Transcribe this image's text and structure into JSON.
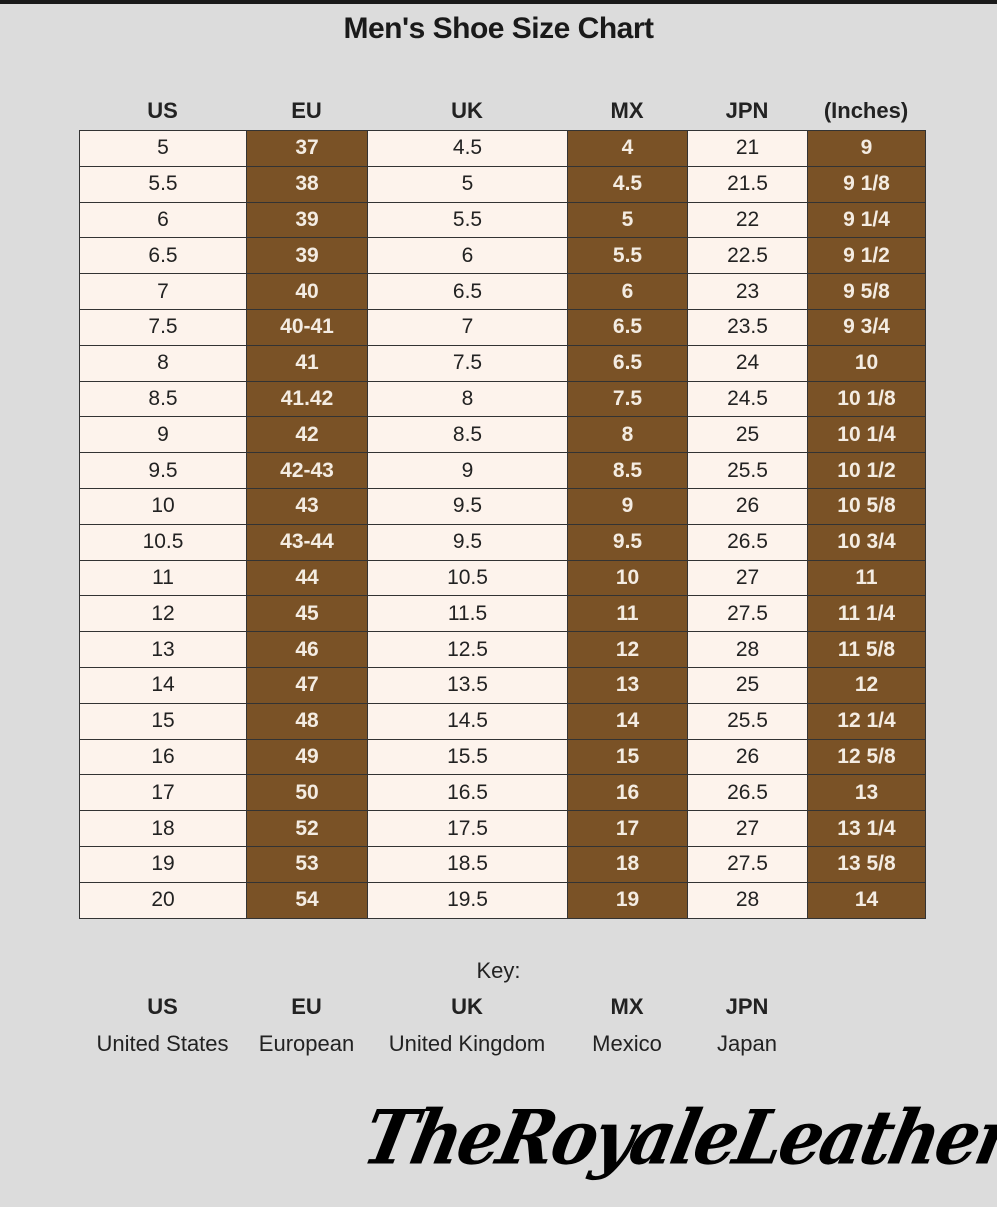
{
  "title": "Men's Shoe Size Chart",
  "columns": [
    "US",
    "EU",
    "UK",
    "MX",
    "JPN",
    "(Inches)"
  ],
  "colors": {
    "background": "#dcdcdc",
    "light_cell": "#fdf3ec",
    "dark_cell": "#7a5226"
  },
  "rows": [
    [
      "5",
      "37",
      "4.5",
      "4",
      "21",
      "9"
    ],
    [
      "5.5",
      "38",
      "5",
      "4.5",
      "21.5",
      "9 1/8"
    ],
    [
      "6",
      "39",
      "5.5",
      "5",
      "22",
      "9 1/4"
    ],
    [
      "6.5",
      "39",
      "6",
      "5.5",
      "22.5",
      "9 1/2"
    ],
    [
      "7",
      "40",
      "6.5",
      "6",
      "23",
      "9 5/8"
    ],
    [
      "7.5",
      "40-41",
      "7",
      "6.5",
      "23.5",
      "9 3/4"
    ],
    [
      "8",
      "41",
      "7.5",
      "6.5",
      "24",
      "10"
    ],
    [
      "8.5",
      "41.42",
      "8",
      "7.5",
      "24.5",
      "10 1/8"
    ],
    [
      "9",
      "42",
      "8.5",
      "8",
      "25",
      "10 1/4"
    ],
    [
      "9.5",
      "42-43",
      "9",
      "8.5",
      "25.5",
      "10 1/2"
    ],
    [
      "10",
      "43",
      "9.5",
      "9",
      "26",
      "10 5/8"
    ],
    [
      "10.5",
      "43-44",
      "9.5",
      "9.5",
      "26.5",
      "10 3/4"
    ],
    [
      "11",
      "44",
      "10.5",
      "10",
      "27",
      "11"
    ],
    [
      "12",
      "45",
      "11.5",
      "11",
      "27.5",
      "11 1/4"
    ],
    [
      "13",
      "46",
      "12.5",
      "12",
      "28",
      "11 5/8"
    ],
    [
      "14",
      "47",
      "13.5",
      "13",
      "25",
      "12"
    ],
    [
      "15",
      "48",
      "14.5",
      "14",
      "25.5",
      "12 1/4"
    ],
    [
      "16",
      "49",
      "15.5",
      "15",
      "26",
      "12 5/8"
    ],
    [
      "17",
      "50",
      "16.5",
      "16",
      "26.5",
      "13"
    ],
    [
      "18",
      "52",
      "17.5",
      "17",
      "27",
      "13 1/4"
    ],
    [
      "19",
      "53",
      "18.5",
      "18",
      "27.5",
      "13 5/8"
    ],
    [
      "20",
      "54",
      "19.5",
      "19",
      "28",
      "14"
    ]
  ],
  "key": {
    "label": "Key:",
    "items": [
      {
        "abbr": "US",
        "full": "United States"
      },
      {
        "abbr": "EU",
        "full": "European"
      },
      {
        "abbr": "UK",
        "full": "United Kingdom"
      },
      {
        "abbr": "MX",
        "full": "Mexico"
      },
      {
        "abbr": "JPN",
        "full": "Japan"
      }
    ]
  },
  "logo": "TheRoyaleLeather"
}
